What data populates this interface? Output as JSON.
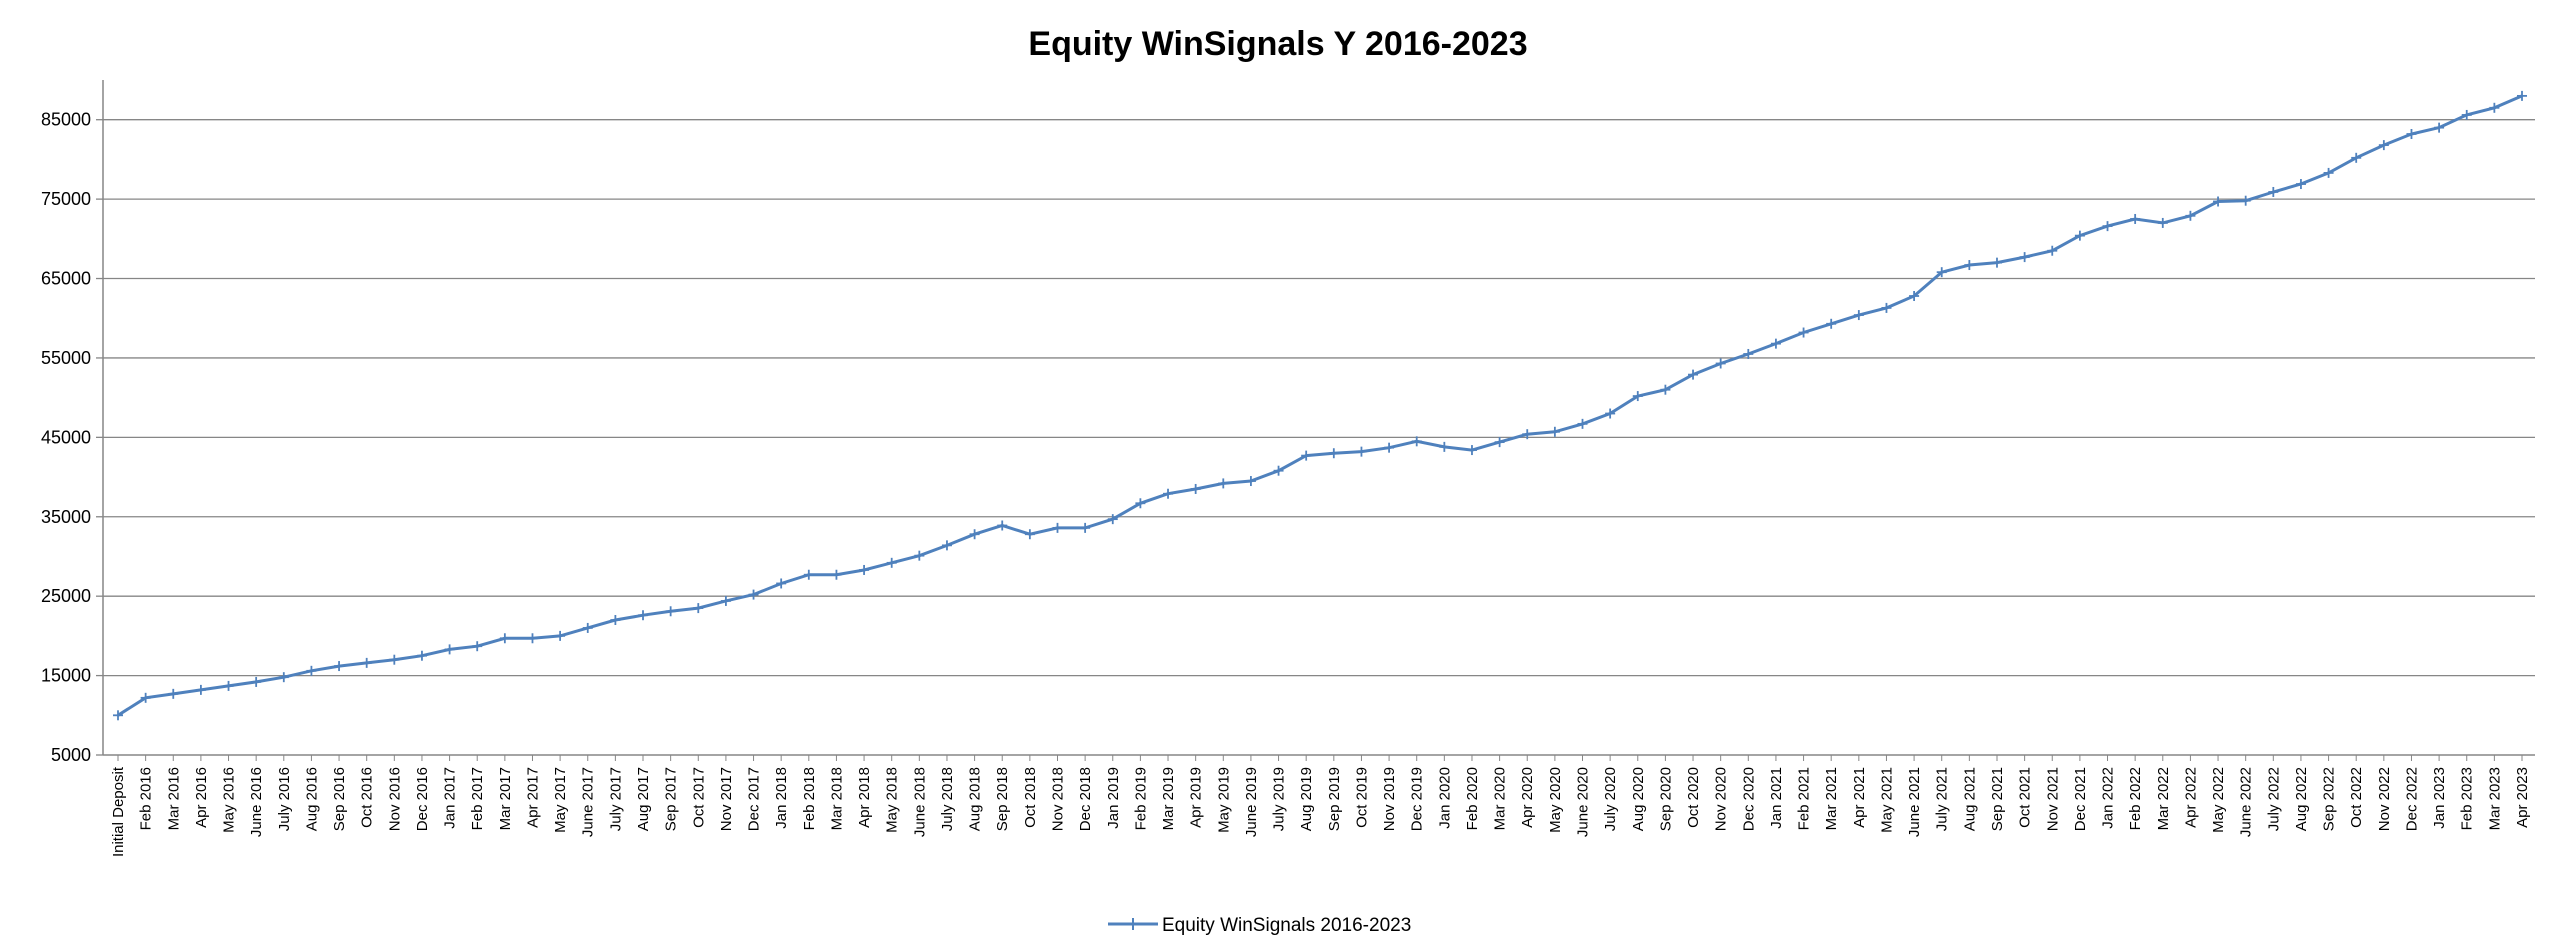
{
  "chart_data": {
    "type": "line",
    "title": "Equity WinSignals Y 2016-2023",
    "xlabel": "",
    "ylabel": "",
    "ylim": [
      5000,
      90000
    ],
    "yticks": [
      5000,
      15000,
      25000,
      35000,
      45000,
      55000,
      65000,
      75000,
      85000
    ],
    "grid": true,
    "legend_position": "bottom-center",
    "line_color": "#4F81BD",
    "categories": [
      "Initial Deposit",
      "Feb 2016",
      "Mar 2016",
      "Apr 2016",
      "May 2016",
      "June 2016",
      "July 2016",
      "Aug 2016",
      "Sep 2016",
      "Oct 2016",
      "Nov 2016",
      "Dec 2016",
      "Jan 2017",
      "Feb 2017",
      "Mar 2017",
      "Apr 2017",
      "May 2017",
      "June 2017",
      "July 2017",
      "Aug 2017",
      "Sep 2017",
      "Oct 2017",
      "Nov 2017",
      "Dec 2017",
      "Jan 2018",
      "Feb 2018",
      "Mar 2018",
      "Apr 2018",
      "May 2018",
      "June 2018",
      "July 2018",
      "Aug 2018",
      "Sep 2018",
      "Oct 2018",
      "Nov 2018",
      "Dec 2018",
      "Jan 2019",
      "Feb 2019",
      "Mar 2019",
      "Apr 2019",
      "May 2019",
      "June 2019",
      "July 2019",
      "Aug 2019",
      "Sep 2019",
      "Oct 2019",
      "Nov 2019",
      "Dec 2019",
      "Jan 2020",
      "Feb 2020",
      "Mar 2020",
      "Apr 2020",
      "May 2020",
      "June 2020",
      "July 2020",
      "Aug 2020",
      "Sep 2020",
      "Oct 2020",
      "Nov 2020",
      "Dec 2020",
      "Jan 2021",
      "Feb 2021",
      "Mar 2021",
      "Apr 2021",
      "May 2021",
      "June 2021",
      "July 2021",
      "Aug 2021",
      "Sep 2021",
      "Oct 2021",
      "Nov 2021",
      "Dec 2021",
      "Jan 2022",
      "Feb 2022",
      "Mar 2022",
      "Apr 2022",
      "May 2022",
      "June 2022",
      "July 2022",
      "Aug 2022",
      "Sep 2022",
      "Oct 2022",
      "Nov 2022",
      "Dec 2022",
      "Jan 2023",
      "Feb 2023",
      "Mar 2023",
      "Apr 2023"
    ],
    "series": [
      {
        "name": "Equity WinSignals 2016-2023",
        "values": [
          10000,
          12200,
          12700,
          13200,
          13700,
          14200,
          14800,
          15600,
          16200,
          16600,
          17000,
          17500,
          18300,
          18700,
          19700,
          19700,
          20000,
          21000,
          22000,
          22600,
          23100,
          23500,
          24400,
          25200,
          26600,
          27700,
          27700,
          28300,
          29200,
          30100,
          31400,
          32800,
          33900,
          32800,
          33600,
          33600,
          34700,
          36700,
          37900,
          38500,
          39200,
          39500,
          40800,
          42700,
          43000,
          43200,
          43700,
          44500,
          43800,
          43400,
          44400,
          45400,
          45700,
          46700,
          48000,
          50200,
          51000,
          52900,
          54300,
          55500,
          56800,
          58200,
          59300,
          60400,
          61300,
          62800,
          65800,
          66700,
          67000,
          67700,
          68500,
          70400,
          71600,
          72500,
          72000,
          72900,
          74700,
          74800,
          75900,
          76900,
          78300,
          80200,
          81800,
          83200,
          84000,
          85600,
          86500,
          88000
        ]
      }
    ]
  }
}
